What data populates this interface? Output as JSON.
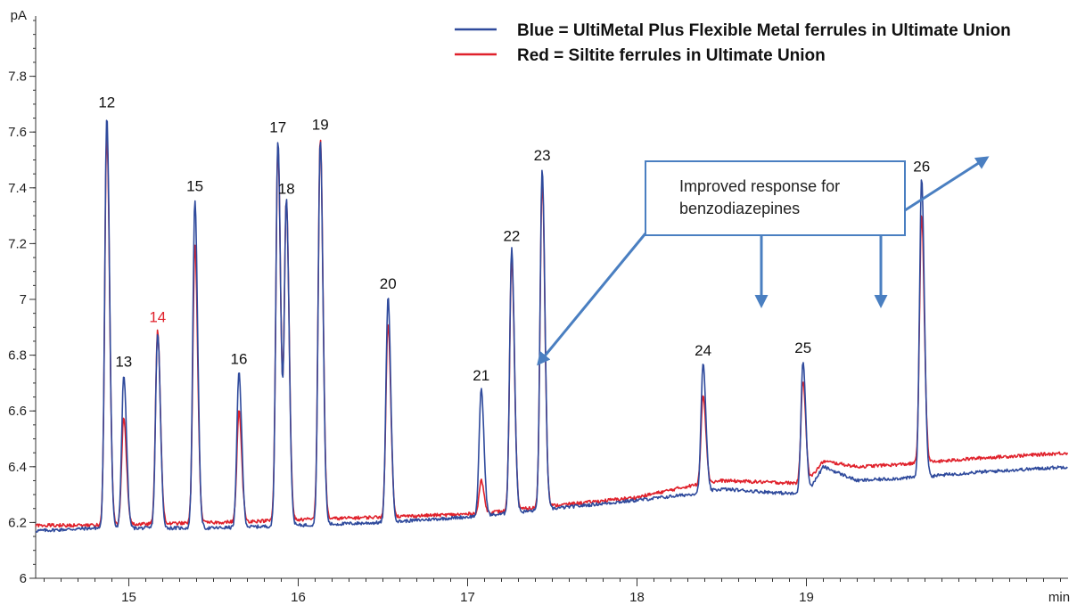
{
  "chart_data": {
    "type": "line",
    "y_unit": "pA",
    "x_unit": "min",
    "xlim": [
      14.45,
      20.55
    ],
    "ylim": [
      6.0,
      8.0
    ],
    "x_ticks": [
      15,
      16,
      17,
      18,
      19
    ],
    "x_tick_labels": [
      "15",
      "16",
      "17",
      "18",
      "19"
    ],
    "y_ticks": [
      6.0,
      6.2,
      6.4,
      6.6,
      6.8,
      7.0,
      7.2,
      7.4,
      7.6,
      7.8
    ],
    "y_tick_labels": [
      "6",
      "6.2",
      "6.4",
      "6.6",
      "6.8",
      "7",
      "7.2",
      "7.4",
      "7.6",
      "7.8"
    ],
    "legend_position": "top-right",
    "series": [
      {
        "name": "Blue = UltiMetal Plus Flexible Metal ferrules in Ultimate Union",
        "color": "#2f4a9c",
        "baseline": [
          [
            14.45,
            6.17
          ],
          [
            14.8,
            6.18
          ],
          [
            15.5,
            6.18
          ],
          [
            16.0,
            6.19
          ],
          [
            16.5,
            6.2
          ],
          [
            17.0,
            6.22
          ],
          [
            17.2,
            6.23
          ],
          [
            17.5,
            6.25
          ],
          [
            18.0,
            6.28
          ],
          [
            18.3,
            6.3
          ],
          [
            18.5,
            6.32
          ],
          [
            19.0,
            6.3
          ],
          [
            19.1,
            6.4
          ],
          [
            19.3,
            6.35
          ],
          [
            19.6,
            6.36
          ],
          [
            20.0,
            6.38
          ],
          [
            20.55,
            6.4
          ]
        ],
        "peaks": [
          [
            14.87,
            7.66
          ],
          [
            14.97,
            6.73
          ],
          [
            15.17,
            6.88
          ],
          [
            15.39,
            7.36
          ],
          [
            15.65,
            6.74
          ],
          [
            15.88,
            7.57
          ],
          [
            15.93,
            7.35
          ],
          [
            16.13,
            7.57
          ],
          [
            16.53,
            7.01
          ],
          [
            17.08,
            6.68
          ],
          [
            17.26,
            7.18
          ],
          [
            17.44,
            7.47
          ],
          [
            18.39,
            6.77
          ],
          [
            18.98,
            6.78
          ],
          [
            19.68,
            7.43
          ]
        ]
      },
      {
        "name": "Red = Siltite ferrules in Ultimate Union",
        "color": "#e0212b",
        "baseline": [
          [
            14.45,
            6.19
          ],
          [
            14.8,
            6.19
          ],
          [
            15.5,
            6.2
          ],
          [
            16.0,
            6.21
          ],
          [
            16.5,
            6.22
          ],
          [
            17.0,
            6.23
          ],
          [
            17.2,
            6.24
          ],
          [
            17.5,
            6.26
          ],
          [
            18.0,
            6.29
          ],
          [
            18.3,
            6.33
          ],
          [
            18.5,
            6.35
          ],
          [
            19.0,
            6.34
          ],
          [
            19.1,
            6.42
          ],
          [
            19.3,
            6.4
          ],
          [
            19.6,
            6.41
          ],
          [
            20.0,
            6.43
          ],
          [
            20.55,
            6.45
          ]
        ],
        "peaks": [
          [
            14.87,
            7.6
          ],
          [
            14.97,
            6.58
          ],
          [
            15.17,
            6.89
          ],
          [
            15.39,
            7.2
          ],
          [
            15.65,
            6.6
          ],
          [
            15.88,
            7.55
          ],
          [
            15.93,
            7.35
          ],
          [
            16.13,
            7.58
          ],
          [
            16.53,
            6.92
          ],
          [
            17.08,
            6.35
          ],
          [
            17.26,
            7.14
          ],
          [
            17.44,
            7.43
          ],
          [
            18.39,
            6.66
          ],
          [
            18.98,
            6.71
          ],
          [
            19.68,
            7.3
          ]
        ]
      }
    ],
    "peak_labels": [
      {
        "text": "12",
        "x": 14.87,
        "y": 7.66,
        "color": "#111111"
      },
      {
        "text": "13",
        "x": 14.97,
        "y": 6.73,
        "color": "#111111"
      },
      {
        "text": "14",
        "x": 15.17,
        "y": 6.89,
        "color": "#e0212b"
      },
      {
        "text": "15",
        "x": 15.39,
        "y": 7.36,
        "color": "#111111"
      },
      {
        "text": "16",
        "x": 15.65,
        "y": 6.74,
        "color": "#111111"
      },
      {
        "text": "17",
        "x": 15.88,
        "y": 7.57,
        "color": "#111111"
      },
      {
        "text": "18",
        "x": 15.93,
        "y": 7.35,
        "color": "#111111"
      },
      {
        "text": "19",
        "x": 16.13,
        "y": 7.58,
        "color": "#111111"
      },
      {
        "text": "20",
        "x": 16.53,
        "y": 7.01,
        "color": "#111111"
      },
      {
        "text": "21",
        "x": 17.08,
        "y": 6.68,
        "color": "#111111"
      },
      {
        "text": "22",
        "x": 17.26,
        "y": 7.18,
        "color": "#111111"
      },
      {
        "text": "23",
        "x": 17.44,
        "y": 7.47,
        "color": "#111111"
      },
      {
        "text": "24",
        "x": 18.39,
        "y": 6.77,
        "color": "#111111"
      },
      {
        "text": "25",
        "x": 18.98,
        "y": 6.78,
        "color": "#111111"
      },
      {
        "text": "26",
        "x": 19.68,
        "y": 7.43,
        "color": "#111111"
      }
    ],
    "annotation": {
      "lines": [
        "Improved response for",
        "benzodiazepines"
      ],
      "color": "#4a7fc1"
    }
  }
}
